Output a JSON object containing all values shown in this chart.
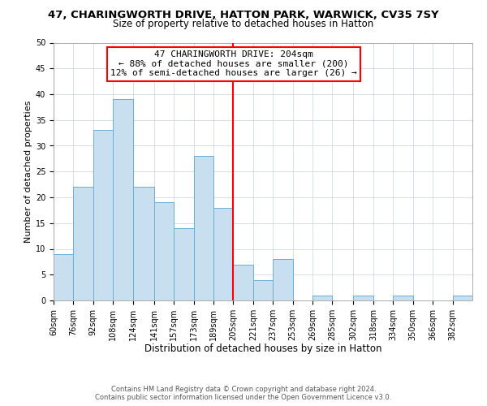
{
  "title": "47, CHARINGWORTH DRIVE, HATTON PARK, WARWICK, CV35 7SY",
  "subtitle": "Size of property relative to detached houses in Hatton",
  "xlabel": "Distribution of detached houses by size in Hatton",
  "ylabel": "Number of detached properties",
  "footer_line1": "Contains HM Land Registry data © Crown copyright and database right 2024.",
  "footer_line2": "Contains public sector information licensed under the Open Government Licence v3.0.",
  "annotation_title": "47 CHARINGWORTH DRIVE: 204sqm",
  "annotation_line2": "← 88% of detached houses are smaller (200)",
  "annotation_line3": "12% of semi-detached houses are larger (26) →",
  "bar_edges": [
    60,
    76,
    92,
    108,
    124,
    141,
    157,
    173,
    189,
    205,
    221,
    237,
    253,
    269,
    285,
    302,
    318,
    334,
    350,
    366,
    382
  ],
  "bar_heights": [
    9,
    22,
    33,
    39,
    22,
    19,
    14,
    28,
    18,
    7,
    4,
    8,
    0,
    1,
    0,
    1,
    0,
    1,
    0,
    0,
    1
  ],
  "bar_color": "#c8dff0",
  "bar_edge_color": "#6aafd6",
  "reference_line_x": 205,
  "reference_line_color": "red",
  "ylim": [
    0,
    50
  ],
  "yticks": [
    0,
    5,
    10,
    15,
    20,
    25,
    30,
    35,
    40,
    45,
    50
  ],
  "background_color": "#ffffff",
  "grid_color": "#d0d8e8",
  "title_fontsize": 9.5,
  "subtitle_fontsize": 8.5,
  "xlabel_fontsize": 8.5,
  "ylabel_fontsize": 8,
  "tick_fontsize": 7,
  "annotation_box_edge_color": "red",
  "annotation_box_face_color": "#ffffff",
  "annotation_fontsize": 8
}
